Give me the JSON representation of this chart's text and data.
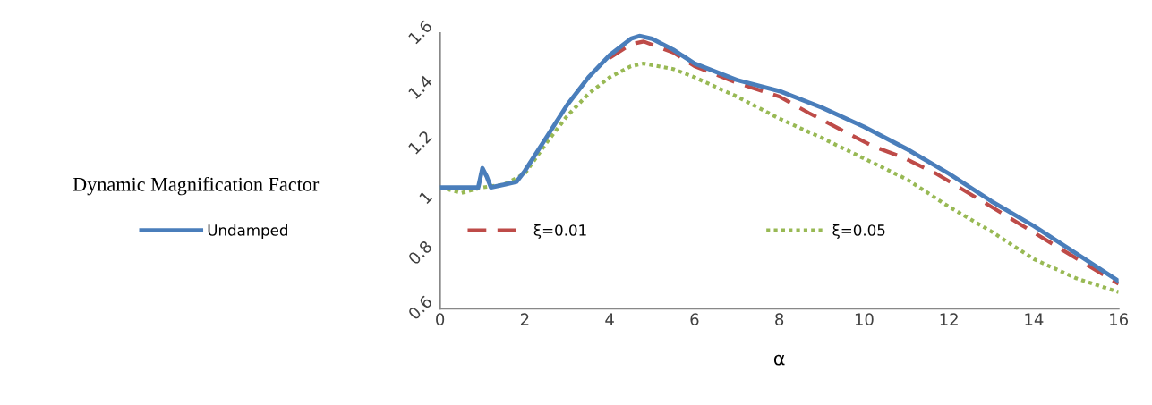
{
  "chart_data": {
    "type": "line",
    "xlabel": "α",
    "ylabel": "Dynamic Magnification Factor",
    "xlim": [
      0,
      16
    ],
    "xticks": [
      0,
      2,
      4,
      6,
      8,
      10,
      12,
      14,
      16
    ],
    "ylim": [
      0.6,
      1.6
    ],
    "yticks": [
      0.6,
      0.8,
      1,
      1.2,
      1.4,
      1.6
    ],
    "grid": false,
    "legend": "left",
    "marker": "none",
    "series": [
      {
        "name": "Undamped",
        "color": "#4a7ebb",
        "line_style": "solid",
        "x": [
          0,
          0.5,
          0.9,
          1.0,
          1.1,
          1.2,
          1.5,
          1.8,
          2.0,
          2.5,
          3.0,
          3.5,
          4.0,
          4.5,
          4.7,
          5.0,
          5.5,
          6.0,
          7.0,
          8.0,
          9.0,
          10,
          11,
          12,
          13,
          14,
          15,
          16
        ],
        "values": [
          1.04,
          1.04,
          1.04,
          1.11,
          1.08,
          1.04,
          1.05,
          1.06,
          1.1,
          1.22,
          1.34,
          1.44,
          1.52,
          1.58,
          1.59,
          1.58,
          1.54,
          1.49,
          1.43,
          1.39,
          1.33,
          1.26,
          1.18,
          1.09,
          0.99,
          0.9,
          0.8,
          0.7
        ]
      },
      {
        "name": "ξ=0.01",
        "color": "#be4b48",
        "line_style": "dashed",
        "x": [
          4.0,
          4.5,
          4.8,
          5.5,
          6.0,
          7.0,
          8.0,
          8.7,
          10.2,
          10.9,
          11.7,
          13,
          14.6,
          16
        ],
        "values": [
          1.51,
          1.56,
          1.57,
          1.53,
          1.48,
          1.42,
          1.37,
          1.31,
          1.19,
          1.15,
          1.09,
          0.97,
          0.82,
          0.69
        ]
      },
      {
        "name": "ξ=0.05",
        "color": "#98b954",
        "line_style": "dotted",
        "x": [
          0,
          0.5,
          1.0,
          1.5,
          2.0,
          2.5,
          3.0,
          3.5,
          4.0,
          4.5,
          4.8,
          5.5,
          6.0,
          7.0,
          8.0,
          9.0,
          10,
          11,
          12,
          13,
          14,
          15,
          16
        ],
        "values": [
          1.04,
          1.02,
          1.04,
          1.05,
          1.09,
          1.2,
          1.3,
          1.38,
          1.44,
          1.48,
          1.49,
          1.47,
          1.44,
          1.37,
          1.29,
          1.22,
          1.145,
          1.07,
          0.97,
          0.88,
          0.78,
          0.71,
          0.66
        ]
      }
    ]
  }
}
